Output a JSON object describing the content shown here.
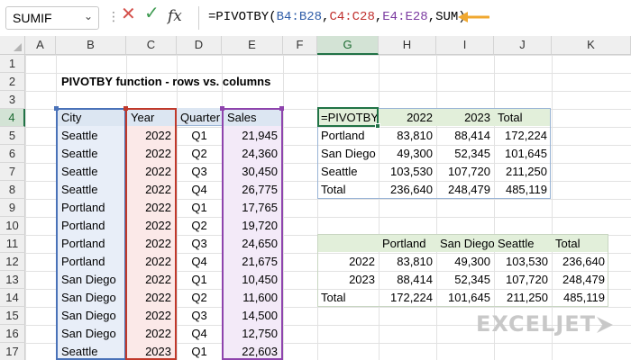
{
  "formula_bar": {
    "name_box": "SUMIF",
    "fx_label": "fx",
    "formula": {
      "prefix": "=PIVOTBY(",
      "ref1": "B4:B28",
      "comma1": ",",
      "ref2": "C4:C28",
      "comma2": ",",
      "ref3": "E4:E28",
      "suffix": ",SUM)"
    }
  },
  "columns": [
    "A",
    "B",
    "C",
    "D",
    "E",
    "F",
    "G",
    "H",
    "I",
    "J",
    "K"
  ],
  "rows": [
    "1",
    "2",
    "3",
    "4",
    "5",
    "6",
    "7",
    "8",
    "9",
    "10",
    "11",
    "12",
    "13",
    "14",
    "15",
    "16",
    "17"
  ],
  "title": "PIVOTBY function - rows vs. columns",
  "source": {
    "headers": [
      "City",
      "Year",
      "Quarter",
      "Sales"
    ],
    "rows": [
      [
        "Seattle",
        "2022",
        "Q1",
        "21,945"
      ],
      [
        "Seattle",
        "2022",
        "Q2",
        "24,360"
      ],
      [
        "Seattle",
        "2022",
        "Q3",
        "30,450"
      ],
      [
        "Seattle",
        "2022",
        "Q4",
        "26,775"
      ],
      [
        "Portland",
        "2022",
        "Q1",
        "17,765"
      ],
      [
        "Portland",
        "2022",
        "Q2",
        "19,720"
      ],
      [
        "Portland",
        "2022",
        "Q3",
        "24,650"
      ],
      [
        "Portland",
        "2022",
        "Q4",
        "21,675"
      ],
      [
        "San Diego",
        "2022",
        "Q1",
        "10,450"
      ],
      [
        "San Diego",
        "2022",
        "Q2",
        "11,600"
      ],
      [
        "San Diego",
        "2022",
        "Q3",
        "14,500"
      ],
      [
        "San Diego",
        "2022",
        "Q4",
        "12,750"
      ],
      [
        "Seattle",
        "2023",
        "Q1",
        "22,603"
      ]
    ]
  },
  "pivot1": {
    "headers": [
      "=PIVOTBY",
      "2022",
      "2023",
      "Total"
    ],
    "rows": [
      [
        "Portland",
        "83,810",
        "88,414",
        "172,224"
      ],
      [
        "San Diego",
        "49,300",
        "52,345",
        "101,645"
      ],
      [
        "Seattle",
        "103,530",
        "107,720",
        "211,250"
      ],
      [
        "Total",
        "236,640",
        "248,479",
        "485,119"
      ]
    ]
  },
  "pivot2": {
    "headers": [
      "",
      "Portland",
      "San Diego",
      "Seattle",
      "Total"
    ],
    "rows": [
      [
        "2022",
        "83,810",
        "49,300",
        "103,530",
        "236,640"
      ],
      [
        "2023",
        "88,414",
        "52,345",
        "107,720",
        "248,479"
      ],
      [
        "Total",
        "172,224",
        "101,645",
        "211,250",
        "485,119"
      ]
    ]
  },
  "logo": "EXCELJET",
  "colors": {
    "excel_green": "#217346",
    "ref_blue": "#4a72b8",
    "ref_red": "#c0392b",
    "ref_purple": "#8e44ad",
    "arrow": "#f0a830"
  }
}
